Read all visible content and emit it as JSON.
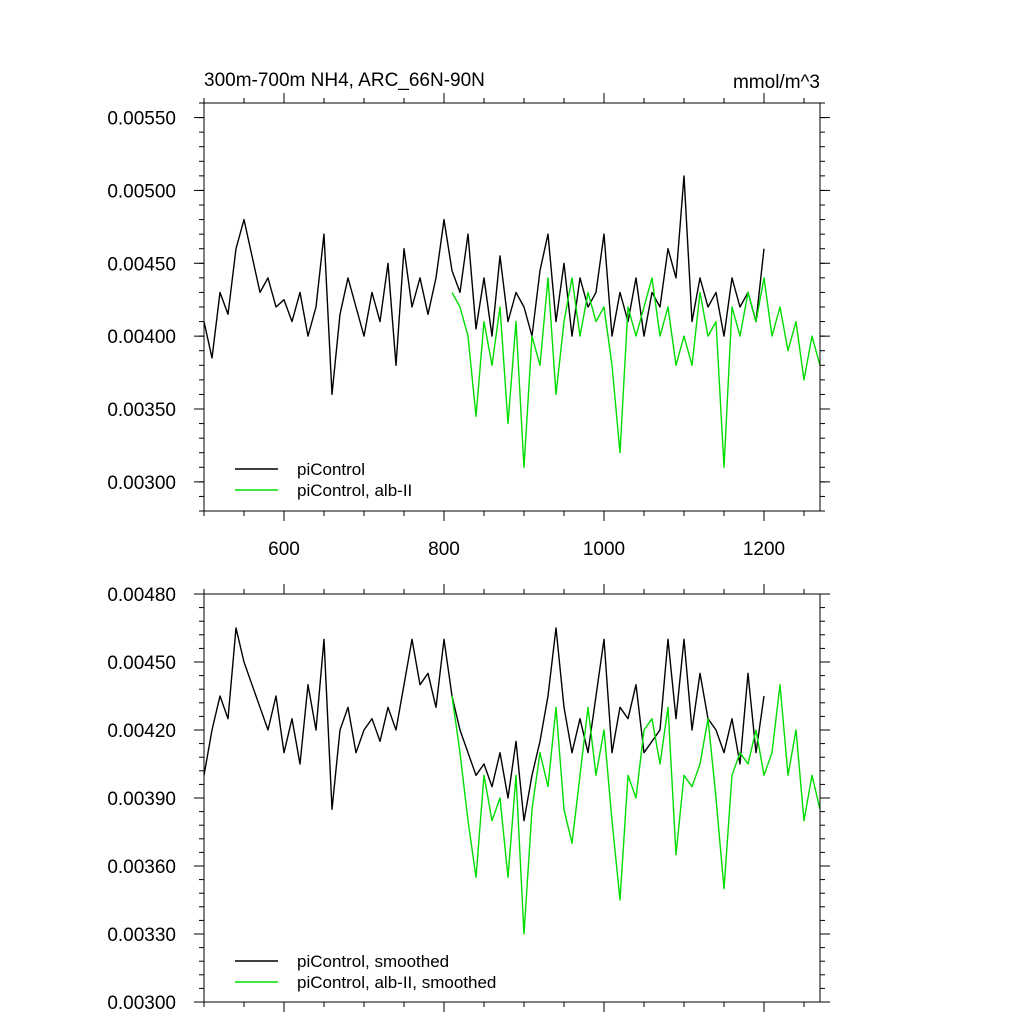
{
  "chart_data": [
    {
      "type": "line",
      "title": "300m-700m NH4, ARC_66N-90N",
      "units": "mmol/m^3",
      "xlim": [
        500,
        1270
      ],
      "ylim": [
        0.0028,
        0.0056
      ],
      "x_ticks": [
        600,
        800,
        1000,
        1200
      ],
      "x_tick_labels": [
        "600",
        "800",
        "1000",
        "1200"
      ],
      "y_ticks": [
        0.003,
        0.0035,
        0.004,
        0.0045,
        0.005,
        0.0055
      ],
      "y_tick_labels": [
        "0.00300",
        "0.00350",
        "0.00400",
        "0.00450",
        "0.00500",
        "0.00550"
      ],
      "legend_position": "bottom-left",
      "series": [
        {
          "name": "piControl",
          "color": "#000000",
          "x": [
            500,
            510,
            520,
            530,
            540,
            550,
            560,
            570,
            580,
            590,
            600,
            610,
            620,
            630,
            640,
            650,
            660,
            670,
            680,
            690,
            700,
            710,
            720,
            730,
            740,
            750,
            760,
            770,
            780,
            790,
            800,
            810,
            820,
            830,
            840,
            850,
            860,
            870,
            880,
            890,
            900,
            910,
            920,
            930,
            940,
            950,
            960,
            970,
            980,
            990,
            1000,
            1010,
            1020,
            1030,
            1040,
            1050,
            1060,
            1070,
            1080,
            1090,
            1100,
            1110,
            1120,
            1130,
            1140,
            1150,
            1160,
            1170,
            1180,
            1190,
            1200
          ],
          "y": [
            0.0041,
            0.00385,
            0.0043,
            0.00415,
            0.0046,
            0.0048,
            0.00455,
            0.0043,
            0.0044,
            0.0042,
            0.00425,
            0.0041,
            0.0043,
            0.004,
            0.0042,
            0.0047,
            0.0036,
            0.00415,
            0.0044,
            0.0042,
            0.004,
            0.0043,
            0.0041,
            0.0045,
            0.0038,
            0.0046,
            0.0042,
            0.0044,
            0.00415,
            0.0044,
            0.0048,
            0.00445,
            0.0043,
            0.0047,
            0.00405,
            0.0044,
            0.004,
            0.00455,
            0.0041,
            0.0043,
            0.0042,
            0.004,
            0.00445,
            0.0047,
            0.0041,
            0.0045,
            0.004,
            0.0044,
            0.0042,
            0.0043,
            0.0047,
            0.004,
            0.0043,
            0.0041,
            0.0044,
            0.004,
            0.0043,
            0.0042,
            0.0046,
            0.0044,
            0.0051,
            0.0041,
            0.0044,
            0.0042,
            0.0043,
            0.004,
            0.0044,
            0.0042,
            0.0043,
            0.0041,
            0.0046
          ]
        },
        {
          "name": "piControl, alb-II",
          "color": "#00dd00",
          "x": [
            810,
            820,
            830,
            840,
            850,
            860,
            870,
            880,
            890,
            900,
            910,
            920,
            930,
            940,
            950,
            960,
            970,
            980,
            990,
            1000,
            1010,
            1020,
            1030,
            1040,
            1050,
            1060,
            1070,
            1080,
            1090,
            1100,
            1110,
            1120,
            1130,
            1140,
            1150,
            1160,
            1170,
            1180,
            1190,
            1200,
            1210,
            1220,
            1230,
            1240,
            1250,
            1260,
            1270
          ],
          "y": [
            0.0043,
            0.0042,
            0.004,
            0.00345,
            0.0041,
            0.0038,
            0.0042,
            0.0034,
            0.0041,
            0.0031,
            0.004,
            0.0038,
            0.0044,
            0.0036,
            0.0041,
            0.0044,
            0.004,
            0.0043,
            0.0041,
            0.0042,
            0.0038,
            0.0032,
            0.0042,
            0.004,
            0.0042,
            0.0044,
            0.004,
            0.0042,
            0.0038,
            0.004,
            0.0038,
            0.0043,
            0.004,
            0.0041,
            0.0031,
            0.0042,
            0.004,
            0.0043,
            0.0041,
            0.0044,
            0.004,
            0.0042,
            0.0039,
            0.0041,
            0.0037,
            0.004,
            0.0038
          ]
        }
      ]
    },
    {
      "type": "line",
      "xlim": [
        500,
        1270
      ],
      "ylim": [
        0.003,
        0.0048
      ],
      "x_ticks": [
        600,
        800,
        1000,
        1200
      ],
      "y_ticks": [
        0.003,
        0.0033,
        0.0036,
        0.0039,
        0.0042,
        0.0045,
        0.0048
      ],
      "y_tick_labels": [
        "0.00300",
        "0.00330",
        "0.00360",
        "0.00390",
        "0.00420",
        "0.00450",
        "0.00480"
      ],
      "legend_position": "bottom-left",
      "series": [
        {
          "name": "piControl, smoothed",
          "color": "#000000",
          "x": [
            500,
            510,
            520,
            530,
            540,
            550,
            560,
            570,
            580,
            590,
            600,
            610,
            620,
            630,
            640,
            650,
            660,
            670,
            680,
            690,
            700,
            710,
            720,
            730,
            740,
            750,
            760,
            770,
            780,
            790,
            800,
            810,
            820,
            830,
            840,
            850,
            860,
            870,
            880,
            890,
            900,
            910,
            920,
            930,
            940,
            950,
            960,
            970,
            980,
            990,
            1000,
            1010,
            1020,
            1030,
            1040,
            1050,
            1060,
            1070,
            1080,
            1090,
            1100,
            1110,
            1120,
            1130,
            1140,
            1150,
            1160,
            1170,
            1180,
            1190,
            1200
          ],
          "y": [
            0.004,
            0.0042,
            0.00435,
            0.00425,
            0.00465,
            0.0045,
            0.0044,
            0.0043,
            0.0042,
            0.00435,
            0.0041,
            0.00425,
            0.00405,
            0.0044,
            0.0042,
            0.0046,
            0.00385,
            0.0042,
            0.0043,
            0.0041,
            0.0042,
            0.00425,
            0.00415,
            0.0043,
            0.0042,
            0.0044,
            0.0046,
            0.0044,
            0.00445,
            0.0043,
            0.0046,
            0.00435,
            0.0042,
            0.0041,
            0.004,
            0.00405,
            0.00395,
            0.0041,
            0.0039,
            0.00415,
            0.0038,
            0.004,
            0.00415,
            0.00435,
            0.00465,
            0.0043,
            0.0041,
            0.00425,
            0.0041,
            0.00435,
            0.0046,
            0.0041,
            0.0043,
            0.00425,
            0.0044,
            0.0041,
            0.00415,
            0.0042,
            0.0046,
            0.00425,
            0.0046,
            0.0042,
            0.00445,
            0.00425,
            0.0042,
            0.0041,
            0.00425,
            0.00405,
            0.00445,
            0.0041,
            0.00435
          ]
        },
        {
          "name": "piControl, alb-II, smoothed",
          "color": "#00dd00",
          "x": [
            810,
            820,
            830,
            840,
            850,
            860,
            870,
            880,
            890,
            900,
            910,
            920,
            930,
            940,
            950,
            960,
            970,
            980,
            990,
            1000,
            1010,
            1020,
            1030,
            1040,
            1050,
            1060,
            1070,
            1080,
            1090,
            1100,
            1110,
            1120,
            1130,
            1140,
            1150,
            1160,
            1170,
            1180,
            1190,
            1200,
            1210,
            1220,
            1230,
            1240,
            1250,
            1260,
            1270
          ],
          "y": [
            0.00435,
            0.0041,
            0.0038,
            0.00355,
            0.004,
            0.0038,
            0.0039,
            0.00355,
            0.004,
            0.0033,
            0.00385,
            0.0041,
            0.00395,
            0.0043,
            0.00385,
            0.0037,
            0.004,
            0.0043,
            0.004,
            0.0042,
            0.0038,
            0.00345,
            0.004,
            0.0039,
            0.0042,
            0.00425,
            0.00405,
            0.0043,
            0.00365,
            0.004,
            0.00395,
            0.00405,
            0.00425,
            0.0039,
            0.0035,
            0.004,
            0.0041,
            0.00405,
            0.0042,
            0.004,
            0.0041,
            0.0044,
            0.004,
            0.0042,
            0.0038,
            0.004,
            0.00385
          ]
        }
      ]
    }
  ]
}
